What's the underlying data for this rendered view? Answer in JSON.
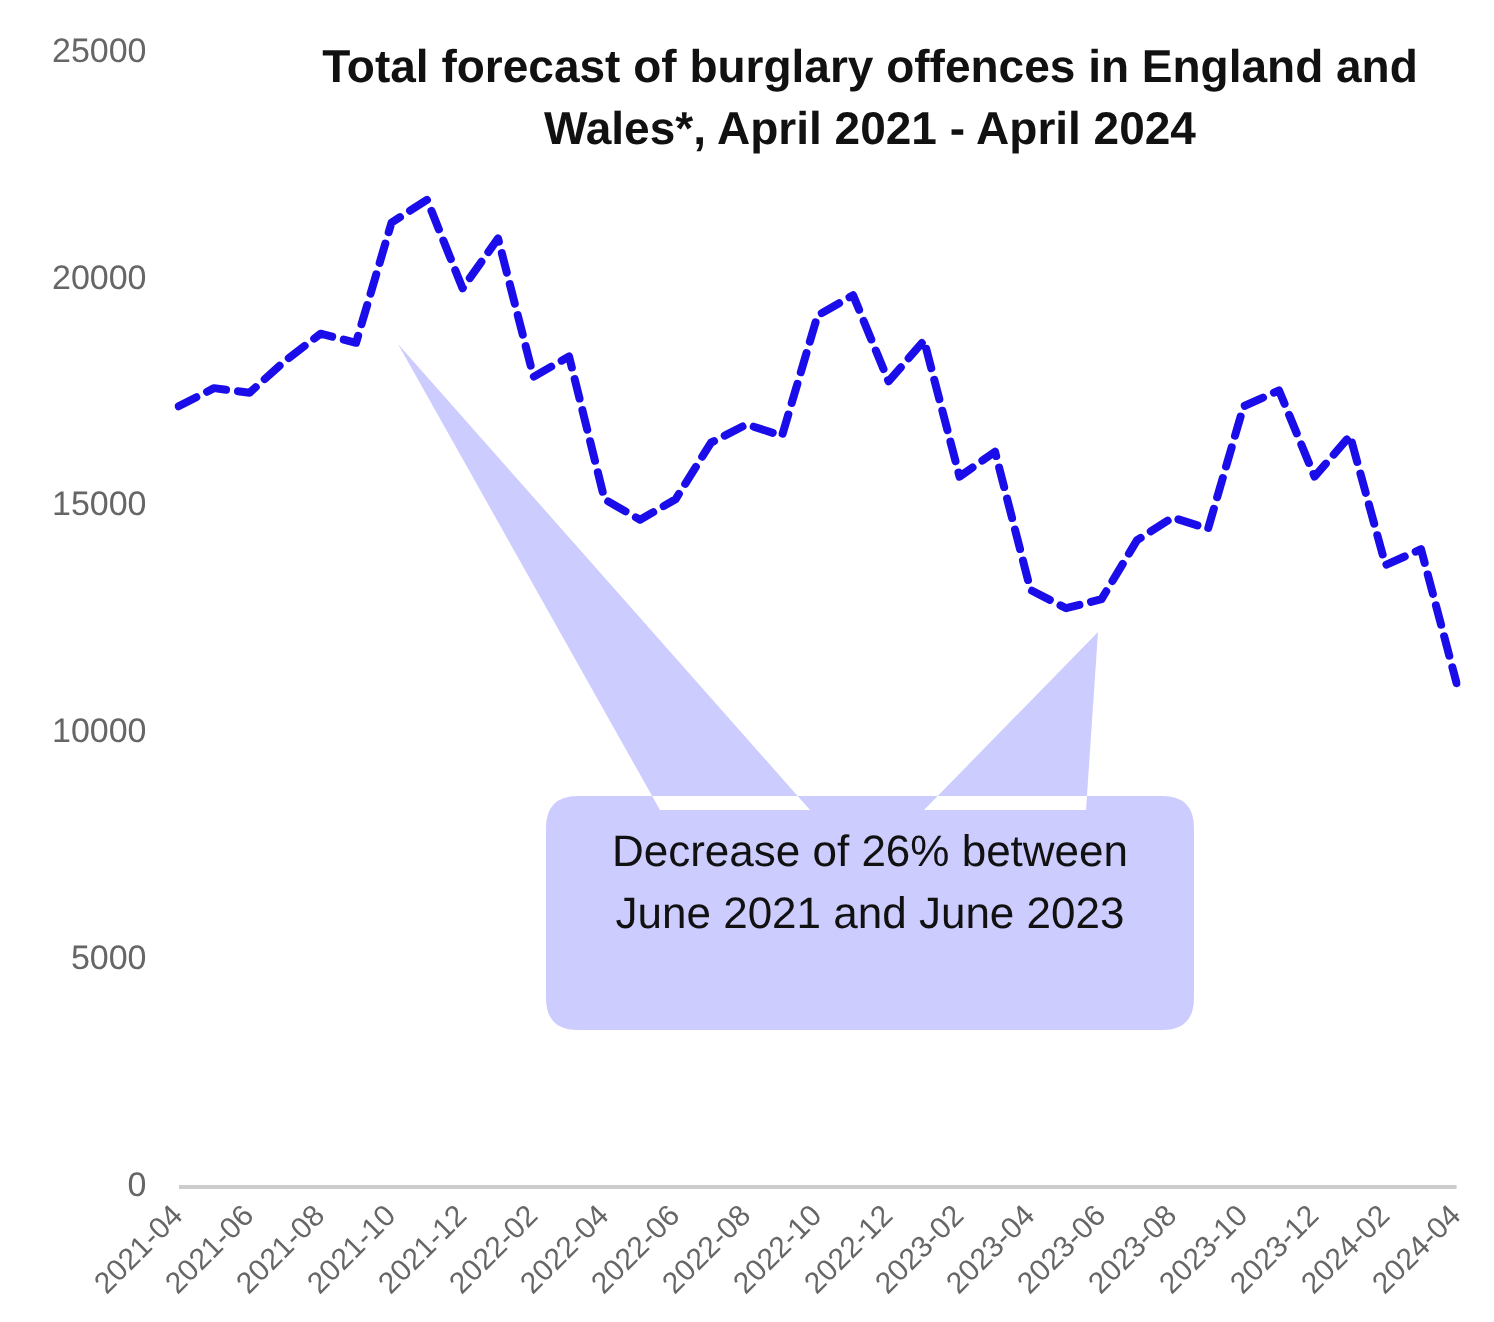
{
  "chart_data": {
    "type": "line",
    "title": "Total forecast of burglary offences in England and Wales*, April 2021 - April 2024",
    "categories": [
      "2021-04",
      null,
      "2021-06",
      null,
      "2021-08",
      null,
      "2021-10",
      null,
      "2021-12",
      null,
      "2022-02",
      null,
      "2022-04",
      null,
      "2022-06",
      null,
      "2022-08",
      null,
      "2022-10",
      null,
      "2022-12",
      null,
      "2023-02",
      null,
      "2023-04",
      null,
      "2023-06",
      null,
      "2023-08",
      null,
      "2023-10",
      null,
      "2023-12",
      null,
      "2024-02",
      null,
      "2024-04"
    ],
    "series": [
      {
        "color": "#1a0dea",
        "values": [
          17200,
          17600,
          17500,
          18200,
          18800,
          18600,
          21250,
          21750,
          19800,
          20900,
          17850,
          18300,
          15150,
          14700,
          15150,
          16400,
          16800,
          16550,
          19200,
          19650,
          17750,
          18650,
          15650,
          16200,
          13150,
          12750,
          12950,
          14250,
          14750,
          14500,
          17200,
          17550,
          15650,
          16550,
          13700,
          14050,
          11100
        ]
      }
    ],
    "ylim": [
      0,
      25000
    ],
    "yticks": [
      0,
      5000,
      10000,
      15000,
      20000,
      25000
    ],
    "grid": false,
    "legend": false,
    "marker": "none",
    "line_style": "dashed",
    "annotations": [
      "Decrease of 26% between June 2021 and June 2023"
    ]
  }
}
